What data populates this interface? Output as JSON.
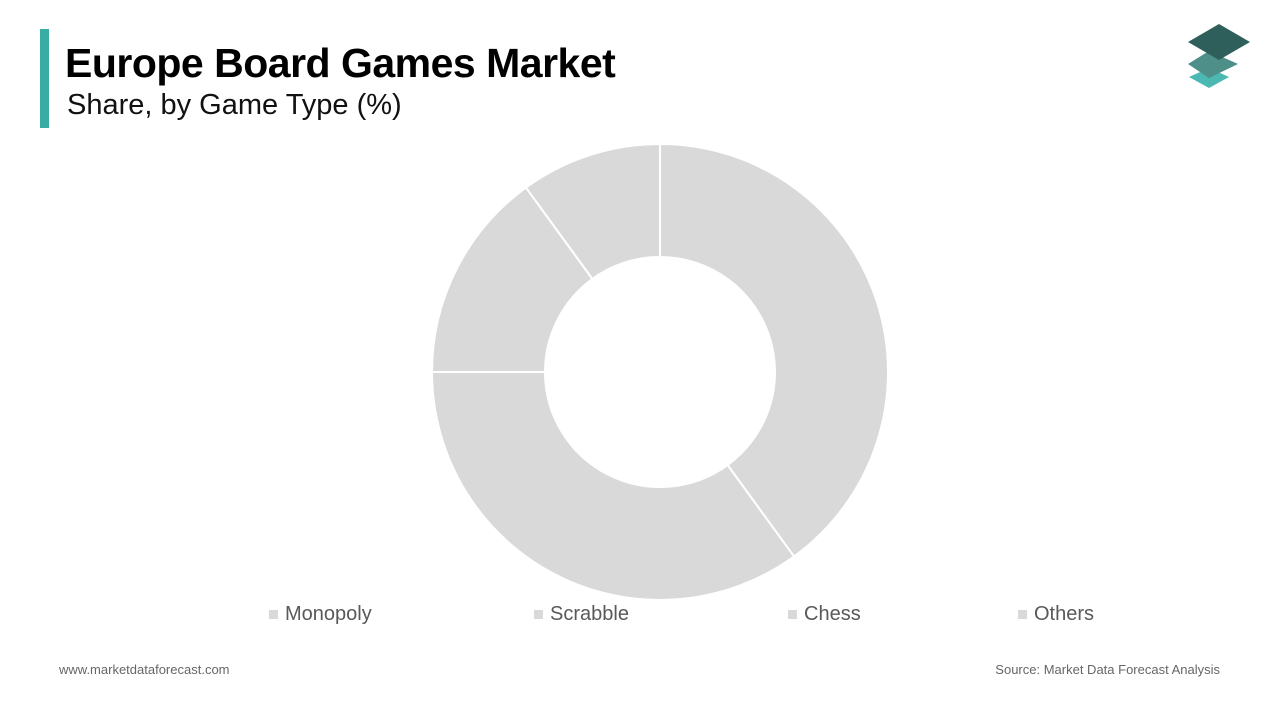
{
  "header": {
    "title": "Europe Board Games Market",
    "subtitle": "Share, by Game Type (%)",
    "accent_color": "#3aaca6"
  },
  "logo": {
    "icon": "stacked-layers-icon",
    "colors": [
      "#2f5f5a",
      "#4e8f89",
      "#4bb8b2"
    ]
  },
  "chart_data": {
    "type": "pie",
    "variant": "donut",
    "title": "Europe Board Games Market",
    "subtitle": "Share, by Game Type (%)",
    "categories": [
      "Monopoly",
      "Scrabble",
      "Chess",
      "Others"
    ],
    "values": [
      40,
      35,
      15,
      10
    ],
    "colors": [
      "#d9d9d9",
      "#d9d9d9",
      "#d9d9d9",
      "#d9d9d9"
    ],
    "slice_border_color": "#ffffff",
    "legend": {
      "position": "bottom"
    }
  },
  "footer": {
    "website": "www.marketdataforecast.com",
    "source": "Source: Market Data Forecast Analysis"
  }
}
